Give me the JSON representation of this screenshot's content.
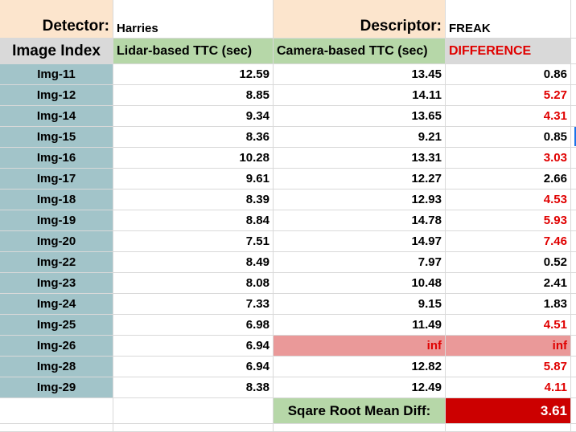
{
  "header": {
    "detector_label": "Detector:",
    "detector_value": "Harries",
    "descriptor_label": "Descriptor:",
    "descriptor_value": "FREAK"
  },
  "columns": {
    "index": "Image Index",
    "lidar": "Lidar-based TTC (sec)",
    "camera": "Camera-based TTC (sec)",
    "difference": "DIFFERENCE"
  },
  "rows": [
    {
      "index": "Img-11",
      "lidar": "12.59",
      "camera": "13.45",
      "diff": "0.86",
      "diff_red": false,
      "camera_inf": false
    },
    {
      "index": "Img-12",
      "lidar": "8.85",
      "camera": "14.11",
      "diff": "5.27",
      "diff_red": true,
      "camera_inf": false
    },
    {
      "index": "Img-14",
      "lidar": "9.34",
      "camera": "13.65",
      "diff": "4.31",
      "diff_red": true,
      "camera_inf": false
    },
    {
      "index": "Img-15",
      "lidar": "8.36",
      "camera": "9.21",
      "diff": "0.85",
      "diff_red": false,
      "camera_inf": false
    },
    {
      "index": "Img-16",
      "lidar": "10.28",
      "camera": "13.31",
      "diff": "3.03",
      "diff_red": true,
      "camera_inf": false
    },
    {
      "index": "Img-17",
      "lidar": "9.61",
      "camera": "12.27",
      "diff": "2.66",
      "diff_red": false,
      "camera_inf": false
    },
    {
      "index": "Img-18",
      "lidar": "8.39",
      "camera": "12.93",
      "diff": "4.53",
      "diff_red": true,
      "camera_inf": false
    },
    {
      "index": "Img-19",
      "lidar": "8.84",
      "camera": "14.78",
      "diff": "5.93",
      "diff_red": true,
      "camera_inf": false
    },
    {
      "index": "Img-20",
      "lidar": "7.51",
      "camera": "14.97",
      "diff": "7.46",
      "diff_red": true,
      "camera_inf": false
    },
    {
      "index": "Img-22",
      "lidar": "8.49",
      "camera": "7.97",
      "diff": "0.52",
      "diff_red": false,
      "camera_inf": false
    },
    {
      "index": "Img-23",
      "lidar": "8.08",
      "camera": "10.48",
      "diff": "2.41",
      "diff_red": false,
      "camera_inf": false
    },
    {
      "index": "Img-24",
      "lidar": "7.33",
      "camera": "9.15",
      "diff": "1.83",
      "diff_red": false,
      "camera_inf": false
    },
    {
      "index": "Img-25",
      "lidar": "6.98",
      "camera": "11.49",
      "diff": "4.51",
      "diff_red": true,
      "camera_inf": false
    },
    {
      "index": "Img-26",
      "lidar": "6.94",
      "camera": "inf",
      "diff": "inf",
      "diff_red": true,
      "camera_inf": true
    },
    {
      "index": "Img-28",
      "lidar": "6.94",
      "camera": "12.82",
      "diff": "5.87",
      "diff_red": true,
      "camera_inf": false
    },
    {
      "index": "Img-29",
      "lidar": "8.38",
      "camera": "12.49",
      "diff": "4.11",
      "diff_red": true,
      "camera_inf": false
    }
  ],
  "summary": {
    "label": "Sqare Root Mean Diff:",
    "value": "3.61"
  },
  "colors": {
    "index_fill": "#a2c4c9",
    "header_tan": "#fce5cd",
    "header_green": "#b6d7a8",
    "inf_fill": "#ea9999",
    "summary_fill": "#cc0000",
    "red_text": "#e00000"
  }
}
